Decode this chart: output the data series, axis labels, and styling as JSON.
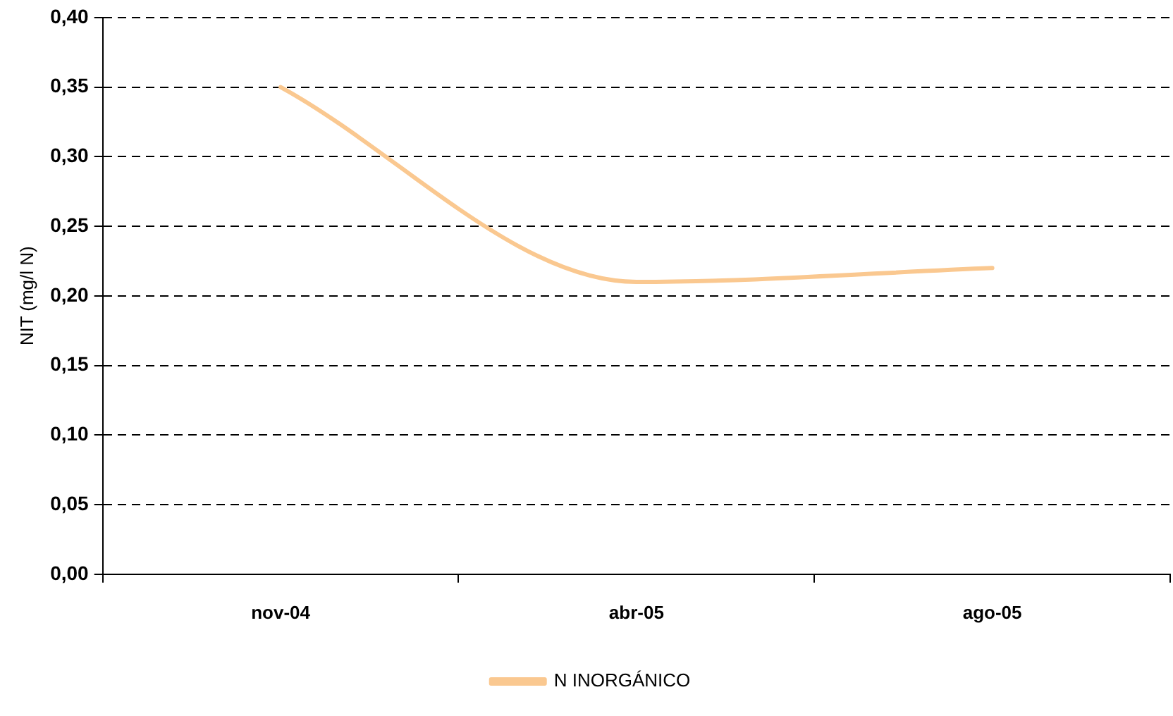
{
  "chart_data": {
    "type": "line",
    "ylabel": "NIT (mg/l N)",
    "categories": [
      "nov-04",
      "abr-05",
      "ago-05"
    ],
    "series": [
      {
        "name": "N INORGÁNICO",
        "color": "#fac890",
        "values": [
          0.35,
          0.21,
          0.22
        ]
      }
    ],
    "ylim": [
      0,
      0.4
    ],
    "yticks": [
      {
        "value": 0,
        "label": "0,00"
      },
      {
        "value": 0.05,
        "label": "0,05"
      },
      {
        "value": 0.1,
        "label": "0,10"
      },
      {
        "value": 0.15,
        "label": "0,15"
      },
      {
        "value": 0.2,
        "label": "0,20"
      },
      {
        "value": 0.25,
        "label": "0,25"
      },
      {
        "value": 0.3,
        "label": "0,30"
      },
      {
        "value": 0.35,
        "label": "0,35"
      },
      {
        "value": 0.4,
        "label": "0,40"
      }
    ],
    "grid": "y",
    "legend": "bottom",
    "marker": "none",
    "line_style": "solid"
  }
}
